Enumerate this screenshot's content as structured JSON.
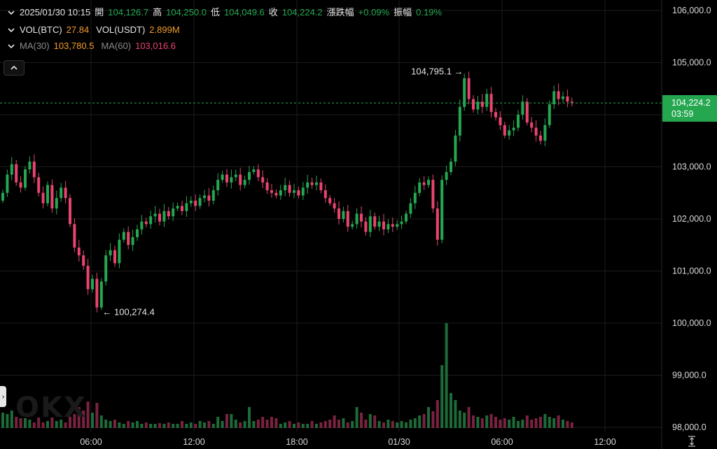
{
  "header": {
    "datetime": "2025/01/30 10:15",
    "open_label": "開",
    "open_value": "104,126.7",
    "high_label": "高",
    "high_value": "104,250.0",
    "low_label": "低",
    "low_value": "104,049.6",
    "close_label": "收",
    "close_value": "104,224.2",
    "change_label": "漲跌幅",
    "change_value": "+0.09%",
    "amplitude_label": "振幅",
    "amplitude_value": "0.19%"
  },
  "volume_legend": {
    "btc_label": "VOL(BTC)",
    "btc_value": "27.84",
    "usdt_label": "VOL(USDT)",
    "usdt_value": "2.899M"
  },
  "ma_legend": {
    "ma30_label": "MA(30)",
    "ma30_value": "103,780.5",
    "ma60_label": "MA(60)",
    "ma60_value": "103,016.6"
  },
  "current_price": {
    "price": "104,224.2",
    "countdown": "03:59"
  },
  "annotations": {
    "high_marker": "104,795.1",
    "low_marker": "100,274.4"
  },
  "watermark": "OKX",
  "icons": {
    "chevron": "chevron-down-icon",
    "collapse": "chevron-up-icon",
    "side": "chevron-right-icon",
    "axis": "axis-scale-icon"
  },
  "colors": {
    "up": "#25a750",
    "down": "#e8446f",
    "ma30": "#f39c2b",
    "ma60": "#e8446f",
    "background": "#000000",
    "grid": "#1c1c1c"
  },
  "chart_data": {
    "type": "candlestick",
    "ylim": [
      97900,
      106200
    ],
    "y_ticks": [
      106000,
      105000,
      104000,
      103000,
      102000,
      101000,
      100000,
      99000,
      98000
    ],
    "y_tick_labels": [
      "106,000.0",
      "105,000.0",
      "104,000.0",
      "103,000.0",
      "102,000.0",
      "101,000.0",
      "100,000.0",
      "99,000.0",
      "98,000.0"
    ],
    "x_tick_labels": [
      "06:00",
      "12:00",
      "18:00",
      "01/30",
      "06:00",
      "12:00"
    ],
    "current_price": 104224.2,
    "closes": [
      102500,
      102850,
      103050,
      102700,
      102600,
      102950,
      103100,
      102800,
      102500,
      102300,
      102650,
      102200,
      102400,
      102600,
      102400,
      101900,
      101450,
      101300,
      101100,
      100650,
      100850,
      100300,
      100800,
      101300,
      101400,
      101150,
      101600,
      101750,
      101500,
      101650,
      101800,
      101950,
      101900,
      102050,
      102100,
      101950,
      102150,
      102050,
      102200,
      102250,
      102150,
      102300,
      102350,
      102250,
      102400,
      102450,
      102350,
      102550,
      102750,
      102850,
      102700,
      102800,
      102850,
      102650,
      102750,
      102900,
      102950,
      102800,
      102700,
      102550,
      102500,
      102450,
      102550,
      102650,
      102500,
      102550,
      102450,
      102600,
      102700,
      102650,
      102700,
      102550,
      102400,
      102300,
      102200,
      102000,
      102150,
      101850,
      101900,
      102100,
      101950,
      101750,
      102050,
      101850,
      101950,
      101800,
      101900,
      101850,
      101900,
      101950,
      102100,
      102300,
      102500,
      102700,
      102650,
      102750,
      102200,
      101600,
      102750,
      102900,
      103100,
      103600,
      104150,
      104700,
      104300,
      104100,
      104250,
      104150,
      104400,
      104050,
      103950,
      103800,
      103600,
      103700,
      103750,
      104000,
      104250,
      103850,
      103750,
      103600,
      103500,
      103800,
      104200,
      104450,
      104300,
      104350,
      104250,
      104224.2
    ],
    "volumes": [
      22,
      20,
      25,
      16,
      14,
      14,
      12,
      8,
      15,
      8,
      10,
      15,
      10,
      12,
      8,
      16,
      20,
      30,
      25,
      38,
      22,
      36,
      18,
      12,
      10,
      12,
      8,
      6,
      10,
      8,
      10,
      6,
      8,
      6,
      6,
      7,
      6,
      8,
      6,
      6,
      10,
      6,
      8,
      6,
      10,
      8,
      10,
      6,
      16,
      10,
      20,
      20,
      12,
      8,
      10,
      30,
      10,
      12,
      16,
      12,
      16,
      14,
      6,
      8,
      10,
      6,
      8,
      6,
      6,
      10,
      6,
      8,
      10,
      12,
      18,
      12,
      14,
      8,
      10,
      30,
      22,
      12,
      20,
      18,
      10,
      8,
      12,
      10,
      8,
      10,
      8,
      12,
      14,
      18,
      20,
      30,
      24,
      40,
      90,
      150,
      50,
      40,
      25,
      22,
      30,
      18,
      16,
      14,
      18,
      20,
      16,
      12,
      14,
      12,
      16,
      10,
      12,
      18,
      12,
      14,
      16,
      20,
      16,
      14,
      18,
      12,
      10,
      8
    ],
    "ma_values": {
      "ma30": 103780.5,
      "ma60": 103016.6
    }
  }
}
